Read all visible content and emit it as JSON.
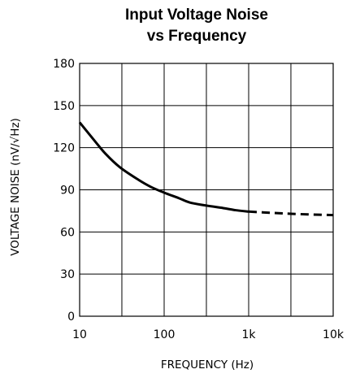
{
  "chart_data": {
    "type": "line",
    "title": [
      "Input Voltage Noise",
      "vs Frequency"
    ],
    "xlabel": "FREQUENCY (Hz)",
    "ylabel": "VOLTAGE NOISE (nV/√Hz)",
    "xscale": "log",
    "xlim": [
      10,
      10000
    ],
    "ylim": [
      0,
      180
    ],
    "xticks": [
      10,
      100,
      1000,
      10000
    ],
    "xtick_labels": [
      "10",
      "100",
      "1k",
      "10k"
    ],
    "yticks": [
      0,
      30,
      60,
      90,
      120,
      150,
      180
    ],
    "ytick_labels": [
      "0",
      "30",
      "60",
      "90",
      "120",
      "150",
      "180"
    ],
    "grid": true,
    "x_gridlines": [
      10,
      31.6,
      100,
      316,
      1000,
      3160,
      10000
    ],
    "line_color": "#000000",
    "series": [
      {
        "style": "solid",
        "x": [
          10,
          15,
          20,
          30,
          50,
          70,
          100,
          150,
          200,
          300,
          500,
          700,
          1000
        ],
        "y": [
          138,
          125,
          116,
          106,
          97,
          92,
          88,
          84,
          81,
          79,
          77,
          75.5,
          74.5
        ]
      },
      {
        "style": "dashed",
        "x": [
          1000,
          2000,
          3000,
          5000,
          10000
        ],
        "y": [
          74.5,
          73.5,
          73,
          72.5,
          72
        ]
      }
    ]
  }
}
